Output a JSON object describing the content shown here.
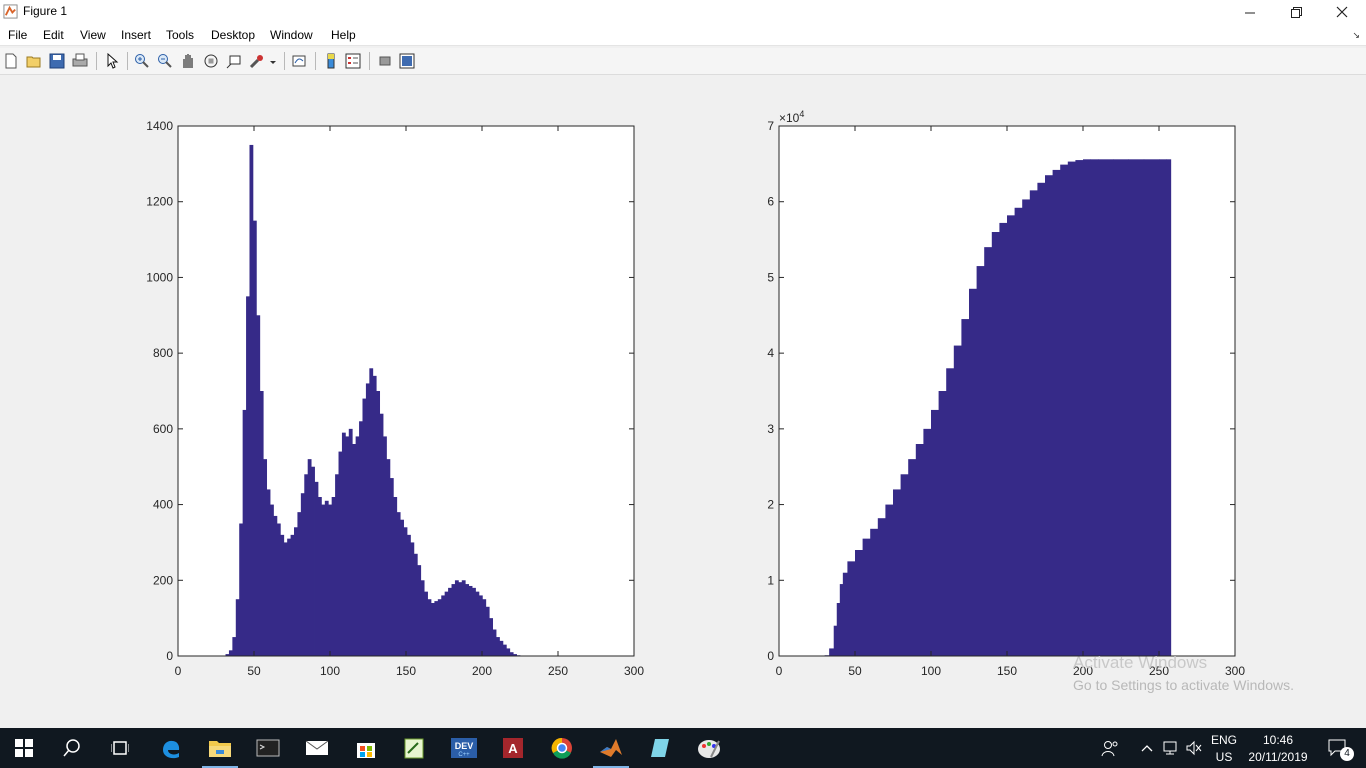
{
  "window": {
    "title": "Figure 1",
    "controls": [
      "minimize",
      "restore",
      "close"
    ]
  },
  "menu": [
    "File",
    "Edit",
    "View",
    "Insert",
    "Tools",
    "Desktop",
    "Window",
    "Help"
  ],
  "toolbar": {
    "icons": [
      "new-figure-icon",
      "open-file-icon",
      "save-icon",
      "print-icon",
      "select-arrow-icon",
      "zoom-in-icon",
      "zoom-out-icon",
      "pan-icon",
      "rotate-3d-icon",
      "data-cursor-icon",
      "brush-icon",
      "link-plot-icon",
      "colorbar-icon",
      "legend-icon",
      "hide-plot-tools-icon",
      "show-plot-tools-icon"
    ]
  },
  "chart_data": [
    {
      "type": "bar",
      "title": "",
      "xlabel": "",
      "ylabel": "",
      "xlim": [
        0,
        300
      ],
      "ylim": [
        0,
        1400
      ],
      "xticks": [
        "0",
        "50",
        "100",
        "150",
        "200",
        "250",
        "300"
      ],
      "yticks": [
        "0",
        "200",
        "400",
        "600",
        "800",
        "1000",
        "1200",
        "1400"
      ],
      "color": "#362a88",
      "x_range": [
        20,
        225
      ],
      "values": [
        0,
        0,
        0,
        0,
        0,
        5,
        15,
        50,
        150,
        350,
        650,
        950,
        1350,
        1150,
        900,
        700,
        520,
        440,
        400,
        370,
        350,
        320,
        300,
        310,
        320,
        340,
        380,
        430,
        480,
        520,
        500,
        460,
        420,
        400,
        410,
        400,
        420,
        480,
        540,
        590,
        580,
        600,
        560,
        580,
        620,
        680,
        720,
        760,
        740,
        700,
        640,
        580,
        520,
        470,
        420,
        380,
        360,
        340,
        320,
        300,
        270,
        240,
        200,
        170,
        150,
        140,
        145,
        150,
        160,
        170,
        180,
        190,
        200,
        195,
        200,
        190,
        185,
        180,
        170,
        160,
        150,
        130,
        100,
        70,
        50,
        40,
        30,
        20,
        10,
        5,
        2
      ]
    },
    {
      "type": "bar",
      "title": "",
      "xlabel": "",
      "ylabel": "",
      "xlim": [
        0,
        300
      ],
      "ylim": [
        0,
        7
      ],
      "y_multiplier": "×10^4",
      "xticks": [
        "0",
        "50",
        "100",
        "150",
        "200",
        "250",
        "300"
      ],
      "yticks": [
        "0",
        "1",
        "2",
        "3",
        "4",
        "5",
        "6",
        "7"
      ],
      "color": "#362a88",
      "x": [
        30,
        33,
        36,
        38,
        40,
        42,
        45,
        50,
        55,
        60,
        65,
        70,
        75,
        80,
        85,
        90,
        95,
        100,
        105,
        110,
        115,
        120,
        125,
        130,
        135,
        140,
        145,
        150,
        155,
        160,
        165,
        170,
        175,
        180,
        185,
        190,
        195,
        200,
        205,
        210,
        220,
        230,
        240,
        250,
        255
      ],
      "values": [
        0.01,
        0.1,
        0.4,
        0.7,
        0.95,
        1.1,
        1.25,
        1.4,
        1.55,
        1.68,
        1.82,
        2.0,
        2.2,
        2.4,
        2.6,
        2.8,
        3.0,
        3.25,
        3.5,
        3.8,
        4.1,
        4.45,
        4.85,
        5.15,
        5.4,
        5.6,
        5.72,
        5.82,
        5.92,
        6.03,
        6.15,
        6.25,
        6.35,
        6.42,
        6.49,
        6.53,
        6.55,
        6.56,
        6.56,
        6.56,
        6.56,
        6.56,
        6.56,
        6.56,
        6.56
      ]
    }
  ],
  "watermark": {
    "line1": "Activate Windows",
    "line2": "Go to Settings to activate Windows."
  },
  "taskbar": {
    "apps": [
      "start-icon",
      "search-icon",
      "task-view-icon",
      "edge-icon",
      "file-explorer-icon",
      "terminal-icon",
      "mail-icon",
      "store-icon",
      "notepad-plus-icon",
      "devcpp-icon",
      "access-icon",
      "chrome-icon",
      "matlab-icon",
      "sticky-notes-icon",
      "paint-icon"
    ],
    "active_app": "matlab-icon",
    "lang": "ENG",
    "region": "US",
    "time": "10:46",
    "date": "20/11/2019",
    "notifications": "4"
  }
}
